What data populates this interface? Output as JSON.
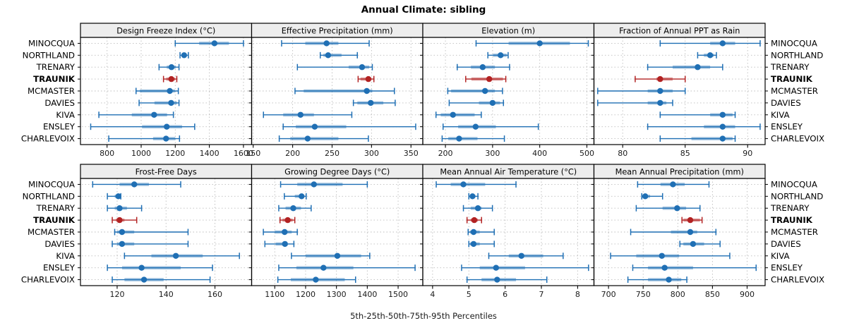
{
  "title": "Annual Climate: sibling",
  "xlabel": "5th-25th-50th-75th-95th Percentiles",
  "colors": {
    "series": "#1f6fb4",
    "highlight": "#b22222",
    "strip_bg": "#ededed",
    "grid": "#bdbdbd",
    "border": "#000000",
    "text": "#1a1a1a",
    "band_opacity": 0.42
  },
  "sites": [
    "MINOCQUA",
    "NORTHLAND",
    "TRENARY",
    "TRAUNIK",
    "MCMASTER",
    "DAVIES",
    "KIVA",
    "ENSLEY",
    "CHARLEVOIX"
  ],
  "highlight_site": "TRAUNIK",
  "percentile_labels": [
    "5th",
    "25th",
    "50th",
    "75th",
    "95th"
  ],
  "chart_data": {
    "type": "dotplot-intervals",
    "note": "values per site are [p5, p25, p50, p75, p95]",
    "rows_top_to_bottom": [
      "MINOCQUA",
      "NORTHLAND",
      "TRENARY",
      "TRAUNIK",
      "MCMASTER",
      "DAVIES",
      "KIVA",
      "ENSLEY",
      "CHARLEVOIX"
    ],
    "panels": [
      {
        "id": "design-freeze-index",
        "title": "Design Freeze Index (°C)",
        "grid_row": 0,
        "grid_col": 0,
        "xlim": [
          644,
          1648
        ],
        "ticks": [
          800,
          1000,
          1200,
          1400,
          1600
        ],
        "values": {
          "MINOCQUA": [
            1200,
            1340,
            1430,
            1515,
            1600
          ],
          "NORTHLAND": [
            1228,
            1240,
            1252,
            1266,
            1277
          ],
          "TRENARY": [
            1105,
            1150,
            1178,
            1203,
            1222
          ],
          "TRAUNIK": [
            1131,
            1147,
            1177,
            1199,
            1209
          ],
          "MCMASTER": [
            970,
            992,
            1168,
            1198,
            1218
          ],
          "DAVIES": [
            988,
            1078,
            1176,
            1210,
            1222
          ],
          "KIVA": [
            752,
            945,
            1076,
            1152,
            1189
          ],
          "ENSLEY": [
            704,
            1005,
            1150,
            1240,
            1314
          ],
          "CHARLEVOIX": [
            810,
            1070,
            1146,
            1200,
            1225
          ]
        }
      },
      {
        "id": "effective-precipitation",
        "title": "Effective Precipitation (mm)",
        "grid_row": 0,
        "grid_col": 1,
        "xlim": [
          148,
          365
        ],
        "ticks": [
          150,
          200,
          250,
          300,
          350
        ],
        "values": {
          "MINOCQUA": [
            186,
            216,
            243,
            258,
            297
          ],
          "NORTHLAND": [
            235,
            239,
            245,
            262,
            282
          ],
          "TRENARY": [
            206,
            271,
            288,
            297,
            301
          ],
          "TRAUNIK": [
            283,
            286,
            296,
            300,
            303
          ],
          "MCMASTER": [
            203,
            214,
            294,
            301,
            329
          ],
          "DAVIES": [
            277,
            282,
            299,
            315,
            330
          ],
          "KIVA": [
            163,
            188,
            210,
            227,
            275
          ],
          "ENSLEY": [
            188,
            204,
            228,
            268,
            356
          ],
          "CHARLEVOIX": [
            183,
            197,
            219,
            258,
            296
          ]
        }
      },
      {
        "id": "elevation",
        "title": "Elevation (m)",
        "grid_row": 0,
        "grid_col": 2,
        "xlim": [
          152,
          515
        ],
        "ticks": [
          200,
          300,
          400,
          500
        ],
        "values": {
          "MINOCQUA": [
            265,
            334,
            400,
            464,
            503
          ],
          "NORTHLAND": [
            290,
            301,
            317,
            330,
            333
          ],
          "TRENARY": [
            225,
            254,
            279,
            305,
            336
          ],
          "TRAUNIK": [
            243,
            255,
            293,
            322,
            328
          ],
          "MCMASTER": [
            205,
            212,
            284,
            305,
            321
          ],
          "DAVIES": [
            208,
            271,
            300,
            316,
            323
          ],
          "KIVA": [
            180,
            190,
            216,
            262,
            276
          ],
          "ENSLEY": [
            195,
            227,
            264,
            307,
            397
          ],
          "CHARLEVOIX": [
            193,
            206,
            229,
            268,
            325
          ]
        }
      },
      {
        "id": "fraction-annual-ppt-as-rain",
        "title": "Fraction of Annual PPT as Rain",
        "grid_row": 0,
        "grid_col": 3,
        "xlim": [
          77.7,
          91.4
        ],
        "ticks": [
          80,
          85,
          90
        ],
        "values": {
          "MINOCQUA": [
            83,
            87,
            88,
            89,
            91
          ],
          "NORTHLAND": [
            86,
            86.5,
            87,
            87.3,
            87.5
          ],
          "TRENARY": [
            82,
            84,
            86,
            87,
            88
          ],
          "TRAUNIK": [
            81,
            82.7,
            83,
            84,
            85
          ],
          "MCMASTER": [
            78,
            82,
            83,
            84,
            85
          ],
          "DAVIES": [
            78,
            82,
            83,
            83.5,
            84
          ],
          "KIVA": [
            83,
            87,
            88,
            88.8,
            89
          ],
          "ENSLEY": [
            82,
            86.5,
            88,
            89,
            91
          ],
          "CHARLEVOIX": [
            83,
            85.5,
            88,
            88.8,
            89
          ]
        }
      },
      {
        "id": "frost-free-days",
        "title": "Frost-Free Days",
        "grid_row": 1,
        "grid_col": 0,
        "xlim": [
          105,
          175
        ],
        "ticks": [
          120,
          140,
          160
        ],
        "values": {
          "MINOCQUA": [
            110,
            121,
            127,
            133,
            146
          ],
          "NORTHLAND": [
            116,
            119,
            120.5,
            121,
            121.5
          ],
          "TRENARY": [
            116,
            119,
            121,
            124,
            130
          ],
          "TRAUNIK": [
            118,
            119.5,
            121,
            123,
            128
          ],
          "MCMASTER": [
            119,
            120,
            122,
            127,
            149
          ],
          "DAVIES": [
            118,
            120,
            122,
            127,
            149
          ],
          "KIVA": [
            123,
            134,
            144,
            155,
            170
          ],
          "ENSLEY": [
            116,
            122,
            130,
            146,
            159
          ],
          "CHARLEVOIX": [
            118,
            123,
            131,
            139,
            158
          ]
        }
      },
      {
        "id": "growing-degree-days",
        "title": "Growing Degree Days (°C)",
        "grid_row": 1,
        "grid_col": 1,
        "xlim": [
          1025,
          1580
        ],
        "ticks": [
          1100,
          1200,
          1300,
          1400,
          1500
        ],
        "values": {
          "MINOCQUA": [
            1119,
            1173,
            1227,
            1320,
            1400
          ],
          "NORTHLAND": [
            1131,
            1165,
            1187,
            1196,
            1202
          ],
          "TRENARY": [
            1113,
            1135,
            1160,
            1185,
            1218
          ],
          "TRAUNIK": [
            1117,
            1125,
            1142,
            1158,
            1165
          ],
          "MCMASTER": [
            1063,
            1100,
            1132,
            1155,
            1173
          ],
          "DAVIES": [
            1068,
            1103,
            1133,
            1142,
            1162
          ],
          "KIVA": [
            1154,
            1200,
            1303,
            1380,
            1408
          ],
          "ENSLEY": [
            1113,
            1170,
            1258,
            1355,
            1555
          ],
          "CHARLEVOIX": [
            1110,
            1152,
            1233,
            1327,
            1362
          ]
        }
      },
      {
        "id": "mean-annual-air-temperature",
        "title": "Mean Annual Air Temperature (°C)",
        "grid_row": 1,
        "grid_col": 2,
        "xlim": [
          3.73,
          8.45
        ],
        "ticks": [
          4,
          5,
          6,
          7,
          8
        ],
        "values": {
          "MINOCQUA": [
            4.1,
            4.5,
            4.85,
            5.45,
            6.3
          ],
          "NORTHLAND": [
            5.0,
            5.03,
            5.1,
            5.18,
            5.25
          ],
          "TRENARY": [
            4.85,
            5.05,
            5.25,
            5.35,
            5.65
          ],
          "TRAUNIK": [
            4.95,
            5.05,
            5.15,
            5.25,
            5.35
          ],
          "MCMASTER": [
            4.98,
            5.03,
            5.13,
            5.3,
            5.7
          ],
          "DAVIES": [
            5.0,
            5.03,
            5.13,
            5.3,
            5.7
          ],
          "KIVA": [
            5.55,
            6.1,
            6.45,
            7.05,
            7.6
          ],
          "ENSLEY": [
            4.8,
            5.3,
            5.75,
            6.55,
            8.3
          ],
          "CHARLEVOIX": [
            4.95,
            5.35,
            5.78,
            6.3,
            7.15
          ]
        }
      },
      {
        "id": "mean-annual-precipitation",
        "title": "Mean Annual Precipitation (mm)",
        "grid_row": 1,
        "grid_col": 3,
        "xlim": [
          679,
          926
        ],
        "ticks": [
          700,
          750,
          800,
          850,
          900
        ],
        "values": {
          "MINOCQUA": [
            742,
            775,
            793,
            810,
            845
          ],
          "NORTHLAND": [
            748,
            749,
            753,
            760,
            778
          ],
          "TRENARY": [
            740,
            778,
            799,
            812,
            832
          ],
          "TRAUNIK": [
            806,
            808,
            818,
            832,
            835
          ],
          "MCMASTER": [
            732,
            790,
            818,
            828,
            855
          ],
          "DAVIES": [
            803,
            808,
            822,
            838,
            861
          ],
          "KIVA": [
            703,
            740,
            777,
            802,
            875
          ],
          "ENSLEY": [
            735,
            757,
            781,
            822,
            913
          ],
          "CHARLEVOIX": [
            728,
            757,
            787,
            805,
            813
          ]
        }
      }
    ]
  }
}
